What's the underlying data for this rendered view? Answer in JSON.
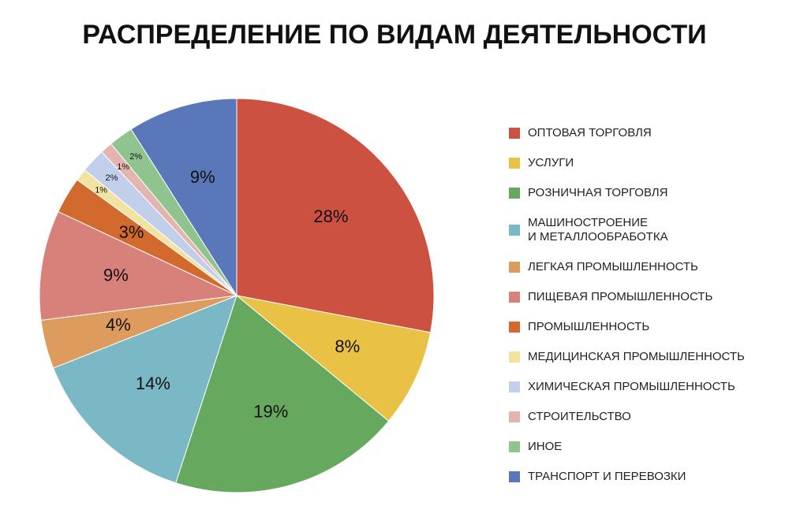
{
  "chart_data": {
    "type": "pie",
    "title": "РАСПРЕДЕЛЕНИЕ ПО ВИДАМ ДЕЯТЕЛЬНОСТИ",
    "categories": [
      "ОПТОВАЯ ТОРГОВЛЯ",
      "УСЛУГИ",
      "РОЗНИЧНАЯ ТОРГОВЛЯ",
      "МАШИНОСТРОЕНИЕ\nИ МЕТАЛЛООБРАБОТКА",
      "ЛЕГКАЯ ПРОМЫШЛЕННОСТЬ",
      "ПИЩЕВАЯ ПРОМЫШЛЕННОСТЬ",
      "ПРОМЫШЛЕННОСТЬ",
      "МЕДИЦИНСКАЯ ПРОМЫШЛЕННОСТЬ",
      "ХИМИЧЕСКАЯ ПРОМЫШЛЕННОСТЬ",
      "СТРОИТЕЛЬСТВО",
      "ИНОЕ",
      "ТРАНСПОРТ И ПЕРЕВОЗКИ"
    ],
    "values": [
      28,
      8,
      19,
      14,
      4,
      9,
      3,
      1,
      2,
      1,
      2,
      9
    ],
    "value_labels": [
      "28%",
      "8%",
      "19%",
      "14%",
      "4%",
      "9%",
      "3%",
      "1%",
      "2%",
      "1%",
      "2%",
      "9%"
    ],
    "colors": [
      "#cd5140",
      "#e9c144",
      "#66a85e",
      "#79b8c4",
      "#dd9c5d",
      "#d8807a",
      "#d26a2e",
      "#f2e3a0",
      "#c2cfea",
      "#e4b5ae",
      "#8fc48e",
      "#5a78b9"
    ]
  }
}
